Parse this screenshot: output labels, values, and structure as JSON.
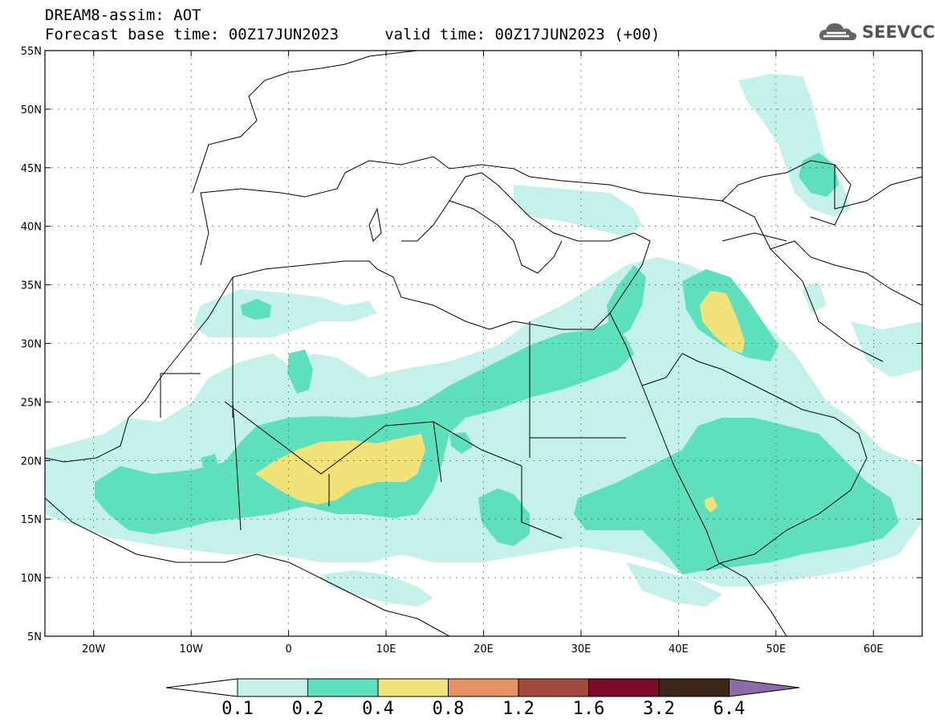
{
  "title": {
    "line1": "DREAM8-assim: AOT",
    "line2": "Forecast base time: 00Z17JUN2023     valid time: 00Z17JUN2023 (+00)"
  },
  "logo": {
    "text": "SEEVCCC",
    "icon": "cloud-icon"
  },
  "map": {
    "lon_range": [
      -25,
      65
    ],
    "lat_range": [
      5,
      55
    ],
    "lat_ticks": [
      {
        "value": 55,
        "label": "55N"
      },
      {
        "value": 50,
        "label": "50N"
      },
      {
        "value": 45,
        "label": "45N"
      },
      {
        "value": 40,
        "label": "40N"
      },
      {
        "value": 35,
        "label": "35N"
      },
      {
        "value": 30,
        "label": "30N"
      },
      {
        "value": 25,
        "label": "25N"
      },
      {
        "value": 20,
        "label": "20N"
      },
      {
        "value": 15,
        "label": "15N"
      },
      {
        "value": 10,
        "label": "10N"
      },
      {
        "value": 5,
        "label": "5N"
      }
    ],
    "lon_ticks": [
      {
        "value": -20,
        "label": "20W"
      },
      {
        "value": -10,
        "label": "10W"
      },
      {
        "value": 0,
        "label": "0"
      },
      {
        "value": 10,
        "label": "10E"
      },
      {
        "value": 20,
        "label": "20E"
      },
      {
        "value": 30,
        "label": "30E"
      },
      {
        "value": 40,
        "label": "40E"
      },
      {
        "value": 50,
        "label": "50E"
      },
      {
        "value": 60,
        "label": "60E"
      }
    ]
  },
  "colorbar": {
    "levels": [
      "0.1",
      "0.2",
      "0.4",
      "0.8",
      "1.2",
      "1.6",
      "3.2",
      "6.4"
    ],
    "colors": [
      "#ffffff",
      "#c4f1ea",
      "#5ee0bc",
      "#f1e27a",
      "#e89066",
      "#a4493c",
      "#7a0a26",
      "#3c2417",
      "#8d6aa8"
    ]
  }
}
